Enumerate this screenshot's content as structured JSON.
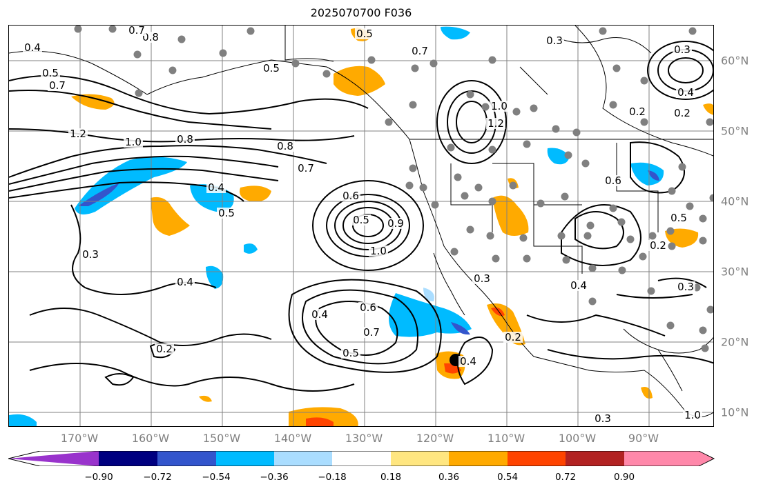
{
  "title": "2025070700 F036",
  "lon_labels": [
    "170°W",
    "160°W",
    "150°W",
    "140°W",
    "130°W",
    "120°W",
    "110°W",
    "100°W",
    "90°W"
  ],
  "lat_labels": [
    "60°N",
    "50°N",
    "40°N",
    "30°N",
    "20°N",
    "10°N"
  ],
  "colorbar": {
    "ticks": [
      "−0.90",
      "−0.72",
      "−0.54",
      "−0.36",
      "−0.18",
      "0.18",
      "0.36",
      "0.54",
      "0.72",
      "0.90"
    ],
    "colors": [
      "#9933cc",
      "#000080",
      "#3355cc",
      "#00bbff",
      "#aaddff",
      "#ffffff",
      "#ffe680",
      "#ffaa00",
      "#ff4400",
      "#b22222",
      "#ff88aa"
    ]
  },
  "contour_labels": [
    {
      "text": "0.4"
    },
    {
      "text": "0.5"
    },
    {
      "text": "0.7"
    },
    {
      "text": "0.8"
    },
    {
      "text": "1.2"
    },
    {
      "text": "1.0"
    },
    {
      "text": "0.8"
    },
    {
      "text": "0.8"
    },
    {
      "text": "0.7"
    },
    {
      "text": "0.5"
    },
    {
      "text": "0.4"
    },
    {
      "text": "0.5"
    },
    {
      "text": "0.3"
    },
    {
      "text": "0.4"
    },
    {
      "text": "0.2"
    },
    {
      "text": "0.7"
    },
    {
      "text": "0.5"
    },
    {
      "text": "0.6"
    },
    {
      "text": "0.5"
    },
    {
      "text": "0.9"
    },
    {
      "text": "1.0"
    },
    {
      "text": "0.4"
    },
    {
      "text": "0.6"
    },
    {
      "text": "0.7"
    },
    {
      "text": "0.5"
    },
    {
      "text": "0.4"
    },
    {
      "text": "0.3"
    },
    {
      "text": "0.7"
    },
    {
      "text": "1.0"
    },
    {
      "text": "1.2"
    },
    {
      "text": "0.3"
    },
    {
      "text": "0.2"
    },
    {
      "text": "0.6"
    },
    {
      "text": "0.5"
    },
    {
      "text": "0.2"
    },
    {
      "text": "0.3"
    },
    {
      "text": "0.4"
    },
    {
      "text": "0.3"
    },
    {
      "text": "0.2"
    },
    {
      "text": "0.3"
    },
    {
      "text": "0.4"
    },
    {
      "text": "0.2"
    },
    {
      "text": "1.0"
    }
  ]
}
